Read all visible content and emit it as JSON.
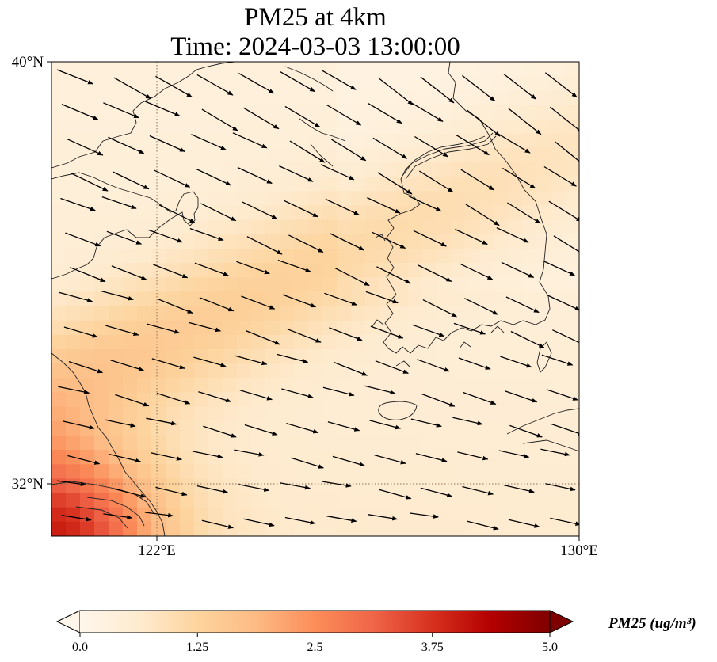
{
  "title": {
    "line1": "PM25 at 4km",
    "line2": "Time: 2024-03-03 13:00:00"
  },
  "map": {
    "extent": {
      "lon_min": 120.0,
      "lon_max": 130.0,
      "lat_min": 31.0,
      "lat_max": 40.0
    },
    "gridlines": {
      "lon": 122,
      "lat": 32,
      "style": "dotted"
    },
    "lat_ticks": [
      {
        "value": 40,
        "label": "40°N"
      },
      {
        "value": 32,
        "label": "32°N"
      }
    ],
    "lon_ticks": [
      {
        "value": 122,
        "label": "122°E"
      },
      {
        "value": 130,
        "label": "130°E"
      }
    ],
    "field": {
      "variable": "PM25",
      "pattern": "pollution plume from the southwest (Yangtze delta) extending east-southeast across the Yellow Sea; near-clean air over the northern bay",
      "max_region": "southwest corner",
      "levels": [
        {
          "where": "southwest corner",
          "value": 3.7
        },
        {
          "where": "central band",
          "value": 1.6
        },
        {
          "where": "northern bay",
          "value": 0.5
        }
      ]
    },
    "wind_vectors": {
      "direction": "from west-northwest toward east-southeast",
      "rows": 15,
      "cols": 12,
      "color": "#000000"
    }
  },
  "colorbar": {
    "colormap": "OrRd",
    "min": 0.0,
    "max": 5.0,
    "extend": "both",
    "ticks": [
      "0.0",
      "1.25",
      "2.5",
      "3.75",
      "5.0"
    ],
    "label": "PM25 (ug/m³)"
  },
  "chart_data": {
    "type": "heatmap",
    "title": "PM25 at 4km\nTime: 2024-03-03 13:00:00",
    "xlim": [
      120.0,
      130.0
    ],
    "ylim": [
      31.0,
      40.0
    ],
    "colorbar_range": [
      0.0,
      5.0
    ],
    "colorbar_ticks": [
      0.0,
      1.25,
      2.5,
      3.75,
      5.0
    ]
  }
}
